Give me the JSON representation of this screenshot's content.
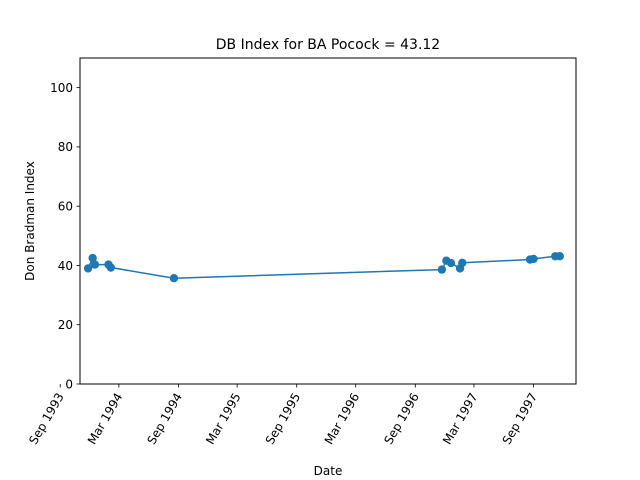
{
  "chart_data": {
    "type": "line",
    "title": "DB Index for BA Pocock = 43.12",
    "xlabel": "Date",
    "ylabel": "Don Bradman Index",
    "ylim": [
      0,
      110
    ],
    "yticks": [
      0,
      20,
      40,
      60,
      80,
      100
    ],
    "xlim": [
      "1993-11-01",
      "1998-01-10"
    ],
    "xticks": [
      {
        "date": "1993-09-01",
        "label": "Sep 1993"
      },
      {
        "date": "1994-03-01",
        "label": "Mar 1994"
      },
      {
        "date": "1994-09-01",
        "label": "Sep 1994"
      },
      {
        "date": "1995-03-01",
        "label": "Mar 1995"
      },
      {
        "date": "1995-09-01",
        "label": "Sep 1995"
      },
      {
        "date": "1996-03-01",
        "label": "Mar 1996"
      },
      {
        "date": "1996-09-01",
        "label": "Sep 1996"
      },
      {
        "date": "1997-03-01",
        "label": "Mar 1997"
      },
      {
        "date": "1997-09-01",
        "label": "Sep 1997"
      }
    ],
    "grid": false,
    "series": [
      {
        "color": "#1f77b4",
        "marker": "circle",
        "points": [
          {
            "x": "1993-11-26",
            "y": 39.0
          },
          {
            "x": "1993-12-10",
            "y": 42.5
          },
          {
            "x": "1993-12-17",
            "y": 40.3
          },
          {
            "x": "1994-01-28",
            "y": 40.3
          },
          {
            "x": "1994-02-04",
            "y": 39.3
          },
          {
            "x": "1994-08-18",
            "y": 35.7
          },
          {
            "x": "1996-11-22",
            "y": 38.6
          },
          {
            "x": "1996-12-06",
            "y": 41.6
          },
          {
            "x": "1996-12-20",
            "y": 40.8
          },
          {
            "x": "1997-01-17",
            "y": 39.0
          },
          {
            "x": "1997-01-24",
            "y": 40.9
          },
          {
            "x": "1997-08-21",
            "y": 42.0
          },
          {
            "x": "1997-09-01",
            "y": 42.2
          },
          {
            "x": "1997-11-07",
            "y": 43.1
          },
          {
            "x": "1997-11-21",
            "y": 43.12
          }
        ]
      }
    ]
  }
}
